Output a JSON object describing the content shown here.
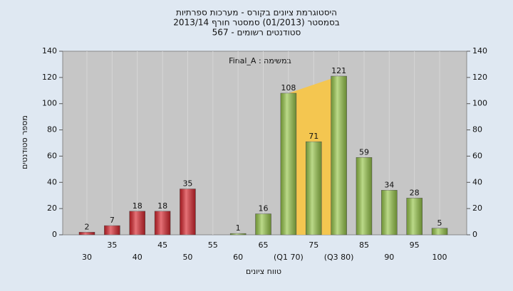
{
  "chart_data": {
    "type": "bar",
    "title": [
      "היסטוגרמת ציונים בקורס - מערכות ספרתיות",
      "בסמסטר  (01/2013)  סמסטר חורף 2013/14",
      "סטודנטים רשומים - 567"
    ],
    "annotation": "במשימה : Final_A",
    "xlabel": "טווח ציונים",
    "ylabel": "מספר סטודנטים",
    "categories": [
      "30",
      "35",
      "40",
      "45",
      "50",
      "55",
      "60",
      "65",
      "(Q1 70)",
      "75",
      "(Q3 80)",
      "85",
      "90",
      "95",
      "100"
    ],
    "values": [
      2,
      7,
      18,
      18,
      35,
      null,
      1,
      16,
      108,
      71,
      121,
      59,
      34,
      28,
      5
    ],
    "colors": [
      "#d8262e",
      "#d8262e",
      "#d8262e",
      "#d8262e",
      "#d8262e",
      "#d8262e",
      "#97c64a",
      "#97c64a",
      "#97c64a",
      "#97c64a",
      "#97c64a",
      "#97c64a",
      "#97c64a",
      "#97c64a",
      "#97c64a"
    ],
    "ylim": [
      0,
      140
    ],
    "yticks": [
      0,
      20,
      40,
      60,
      80,
      100,
      120,
      140
    ],
    "y2lim": [
      0,
      140
    ],
    "y2ticks": [
      0,
      20,
      40,
      60,
      80,
      100,
      120,
      140
    ]
  }
}
